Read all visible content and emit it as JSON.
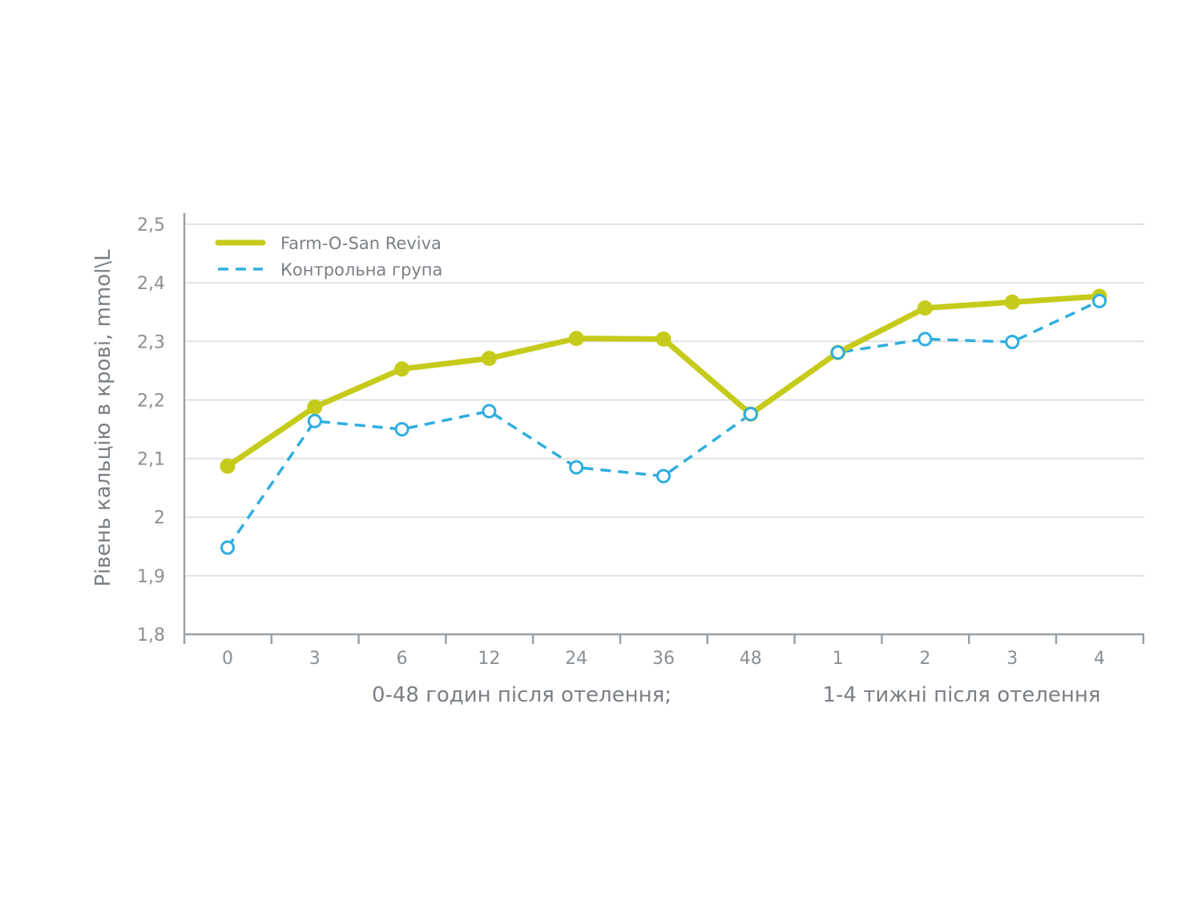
{
  "chart_data": {
    "type": "line",
    "categories": [
      "0",
      "3",
      "6",
      "12",
      "24",
      "36",
      "48",
      "1",
      "2",
      "3",
      "4"
    ],
    "ylabel": "Рівень кальцію в крові, mmol\\L",
    "xlabel_groups": [
      "0-48 годин після отелення;",
      "1-4 тижні після отелення"
    ],
    "ylim": [
      1.8,
      2.5
    ],
    "yticks": [
      "1,8",
      "1,9",
      "2",
      "2,1",
      "2,2",
      "2,3",
      "2,4",
      "2,5"
    ],
    "grid": true,
    "legend_position": "top-left",
    "series": [
      {
        "name": "Farm-O-San Reviva",
        "color": "#c5cb1a",
        "style": "solid",
        "marker": "filled-circle",
        "values": [
          2.087,
          2.188,
          2.253,
          2.271,
          2.305,
          2.304,
          2.176,
          2.281,
          2.357,
          2.367,
          2.377
        ]
      },
      {
        "name": "Контрольна група",
        "color": "#2eaee0",
        "style": "dashed",
        "marker": "open-circle",
        "values": [
          1.948,
          2.164,
          2.15,
          2.181,
          2.085,
          2.07,
          2.176,
          2.281,
          2.304,
          2.299,
          2.369
        ]
      }
    ]
  }
}
